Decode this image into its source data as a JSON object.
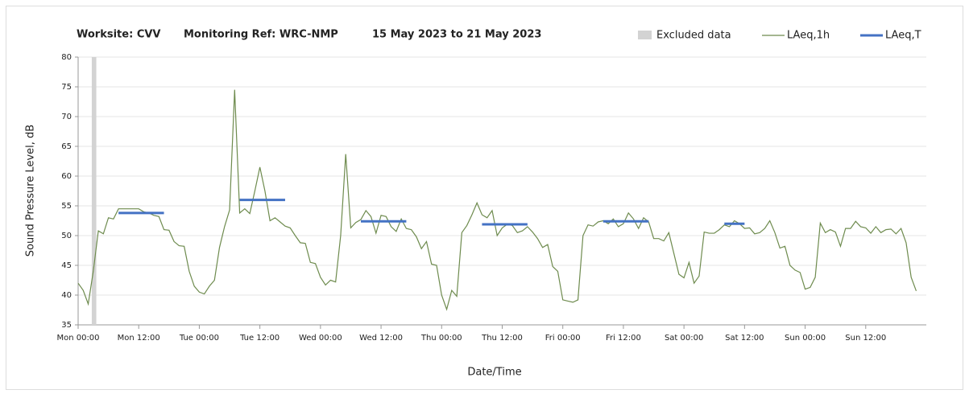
{
  "chart_data": {
    "type": "line",
    "title": [
      "Worksite: CVV",
      "Monitoring Ref: WRC-NMP",
      "15 May 2023 to 21 May 2023"
    ],
    "xlabel": "Date/Time",
    "ylabel": "Sound Pressure Level, dB",
    "xlim": [
      0,
      168
    ],
    "ylim": [
      35,
      80
    ],
    "yticks": [
      35,
      40,
      45,
      50,
      55,
      60,
      65,
      70,
      75,
      80
    ],
    "xticks": [
      {
        "value": 0,
        "label": "Mon 00:00"
      },
      {
        "value": 12,
        "label": "Mon 12:00"
      },
      {
        "value": 24,
        "label": "Tue 00:00"
      },
      {
        "value": 36,
        "label": "Tue 12:00"
      },
      {
        "value": 48,
        "label": "Wed 00:00"
      },
      {
        "value": 60,
        "label": "Wed 12:00"
      },
      {
        "value": 72,
        "label": "Thu 00:00"
      },
      {
        "value": 84,
        "label": "Thu 12:00"
      },
      {
        "value": 96,
        "label": "Fri 00:00"
      },
      {
        "value": 108,
        "label": "Fri 12:00"
      },
      {
        "value": 120,
        "label": "Sat 00:00"
      },
      {
        "value": 132,
        "label": "Sat 12:00"
      },
      {
        "value": 144,
        "label": "Sun 00:00"
      },
      {
        "value": 156,
        "label": "Sun 12:00"
      }
    ],
    "grid": true,
    "excluded": {
      "name": "Excluded data",
      "color": "#d3d3d3",
      "ranges": [
        [
          2.7,
          3.6
        ]
      ]
    },
    "series": [
      {
        "name": "LAeq,1h",
        "color": "#6e8b4e",
        "x": [
          0,
          1,
          2,
          3,
          4,
          5,
          6,
          7,
          8,
          9,
          10,
          11,
          12,
          13,
          14,
          15,
          16,
          17,
          18,
          19,
          20,
          21,
          22,
          23,
          24,
          25,
          26,
          27,
          28,
          29,
          30,
          31,
          32,
          33,
          34,
          35,
          36,
          37,
          38,
          39,
          40,
          41,
          42,
          43,
          44,
          45,
          46,
          47,
          48,
          49,
          50,
          51,
          52,
          53,
          54,
          55,
          56,
          57,
          58,
          59,
          60,
          61,
          62,
          63,
          64,
          65,
          66,
          67,
          68,
          69,
          70,
          71,
          72,
          73,
          74,
          75,
          76,
          77,
          78,
          79,
          80,
          81,
          82,
          83,
          84,
          85,
          86,
          87,
          88,
          89,
          90,
          91,
          92,
          93,
          94,
          95,
          96,
          97,
          98,
          99,
          100,
          101,
          102,
          103,
          104,
          105,
          106,
          107,
          108,
          109,
          110,
          111,
          112,
          113,
          114,
          115,
          116,
          117,
          118,
          119,
          120,
          121,
          122,
          123,
          124,
          125,
          126,
          127,
          128,
          129,
          130,
          131,
          132,
          133,
          134,
          135,
          136,
          137,
          138,
          139,
          140,
          141,
          142,
          143,
          144,
          145,
          146,
          147,
          148,
          149,
          150,
          151,
          152,
          153,
          154,
          155,
          156,
          157,
          158,
          159,
          160,
          161,
          162,
          163,
          164,
          165,
          166
        ],
        "values": [
          42,
          40.8,
          38.5,
          44,
          50.8,
          50.3,
          53,
          52.8,
          54.5,
          54.5,
          54.5,
          54.5,
          54.5,
          54,
          53.8,
          53.4,
          53.2,
          51,
          50.9,
          49,
          48.3,
          48.2,
          44,
          41.5,
          40.5,
          40.2,
          41.5,
          42.5,
          48,
          51.5,
          54.3,
          74.5,
          53.8,
          54.5,
          53.7,
          57.5,
          61.5,
          57.5,
          52.5,
          53,
          52.3,
          51.6,
          51.3,
          50,
          48.8,
          48.7,
          45.5,
          45.3,
          43,
          41.7,
          42.5,
          42.2,
          50,
          63.7,
          51.3,
          52.2,
          52.7,
          54.2,
          53.2,
          50.4,
          53.4,
          53.2,
          51.5,
          50.7,
          52.8,
          51.2,
          51,
          49.8,
          47.8,
          49,
          45.2,
          45,
          40,
          37.6,
          40.8,
          39.8,
          50.5,
          51.7,
          53.5,
          55.5,
          53.5,
          53,
          54.2,
          50,
          51.3,
          51.9,
          51.7,
          50.5,
          50.8,
          51.5,
          50.6,
          49.5,
          48,
          48.5,
          44.8,
          44,
          39.2,
          39,
          38.8,
          39.2,
          50,
          51.8,
          51.6,
          52.3,
          52.5,
          52,
          52.8,
          51.5,
          52,
          53.8,
          52.8,
          51.2,
          53,
          52.3,
          49.5,
          49.5,
          49.1,
          50.5,
          47,
          43.5,
          42.9,
          45.5,
          42,
          43.2,
          50.6,
          50.4,
          50.4,
          51,
          51.8,
          51.5,
          52.5,
          52,
          51.2,
          51.3,
          50.3,
          50.5,
          51.2,
          52.5,
          50.5,
          47.9,
          48.2,
          45,
          44.2,
          43.8,
          41,
          41.3,
          43,
          52.1,
          50.5,
          51,
          50.6,
          48.2,
          51.2,
          51.2,
          52.4,
          51.5,
          51.3,
          50.4,
          51.5,
          50.5,
          51,
          51.1,
          50.3,
          51.2,
          48.8,
          43,
          40.7
        ]
      },
      {
        "name": "LAeq,T",
        "color": "#4472c4",
        "segments": [
          {
            "start": 8,
            "end": 17,
            "value": 53.8
          },
          {
            "start": 32,
            "end": 41,
            "value": 56
          },
          {
            "start": 56,
            "end": 65,
            "value": 52.4
          },
          {
            "start": 80,
            "end": 89,
            "value": 51.9
          },
          {
            "start": 104,
            "end": 113,
            "value": 52.4
          },
          {
            "start": 128,
            "end": 132,
            "value": 52
          }
        ]
      }
    ]
  }
}
